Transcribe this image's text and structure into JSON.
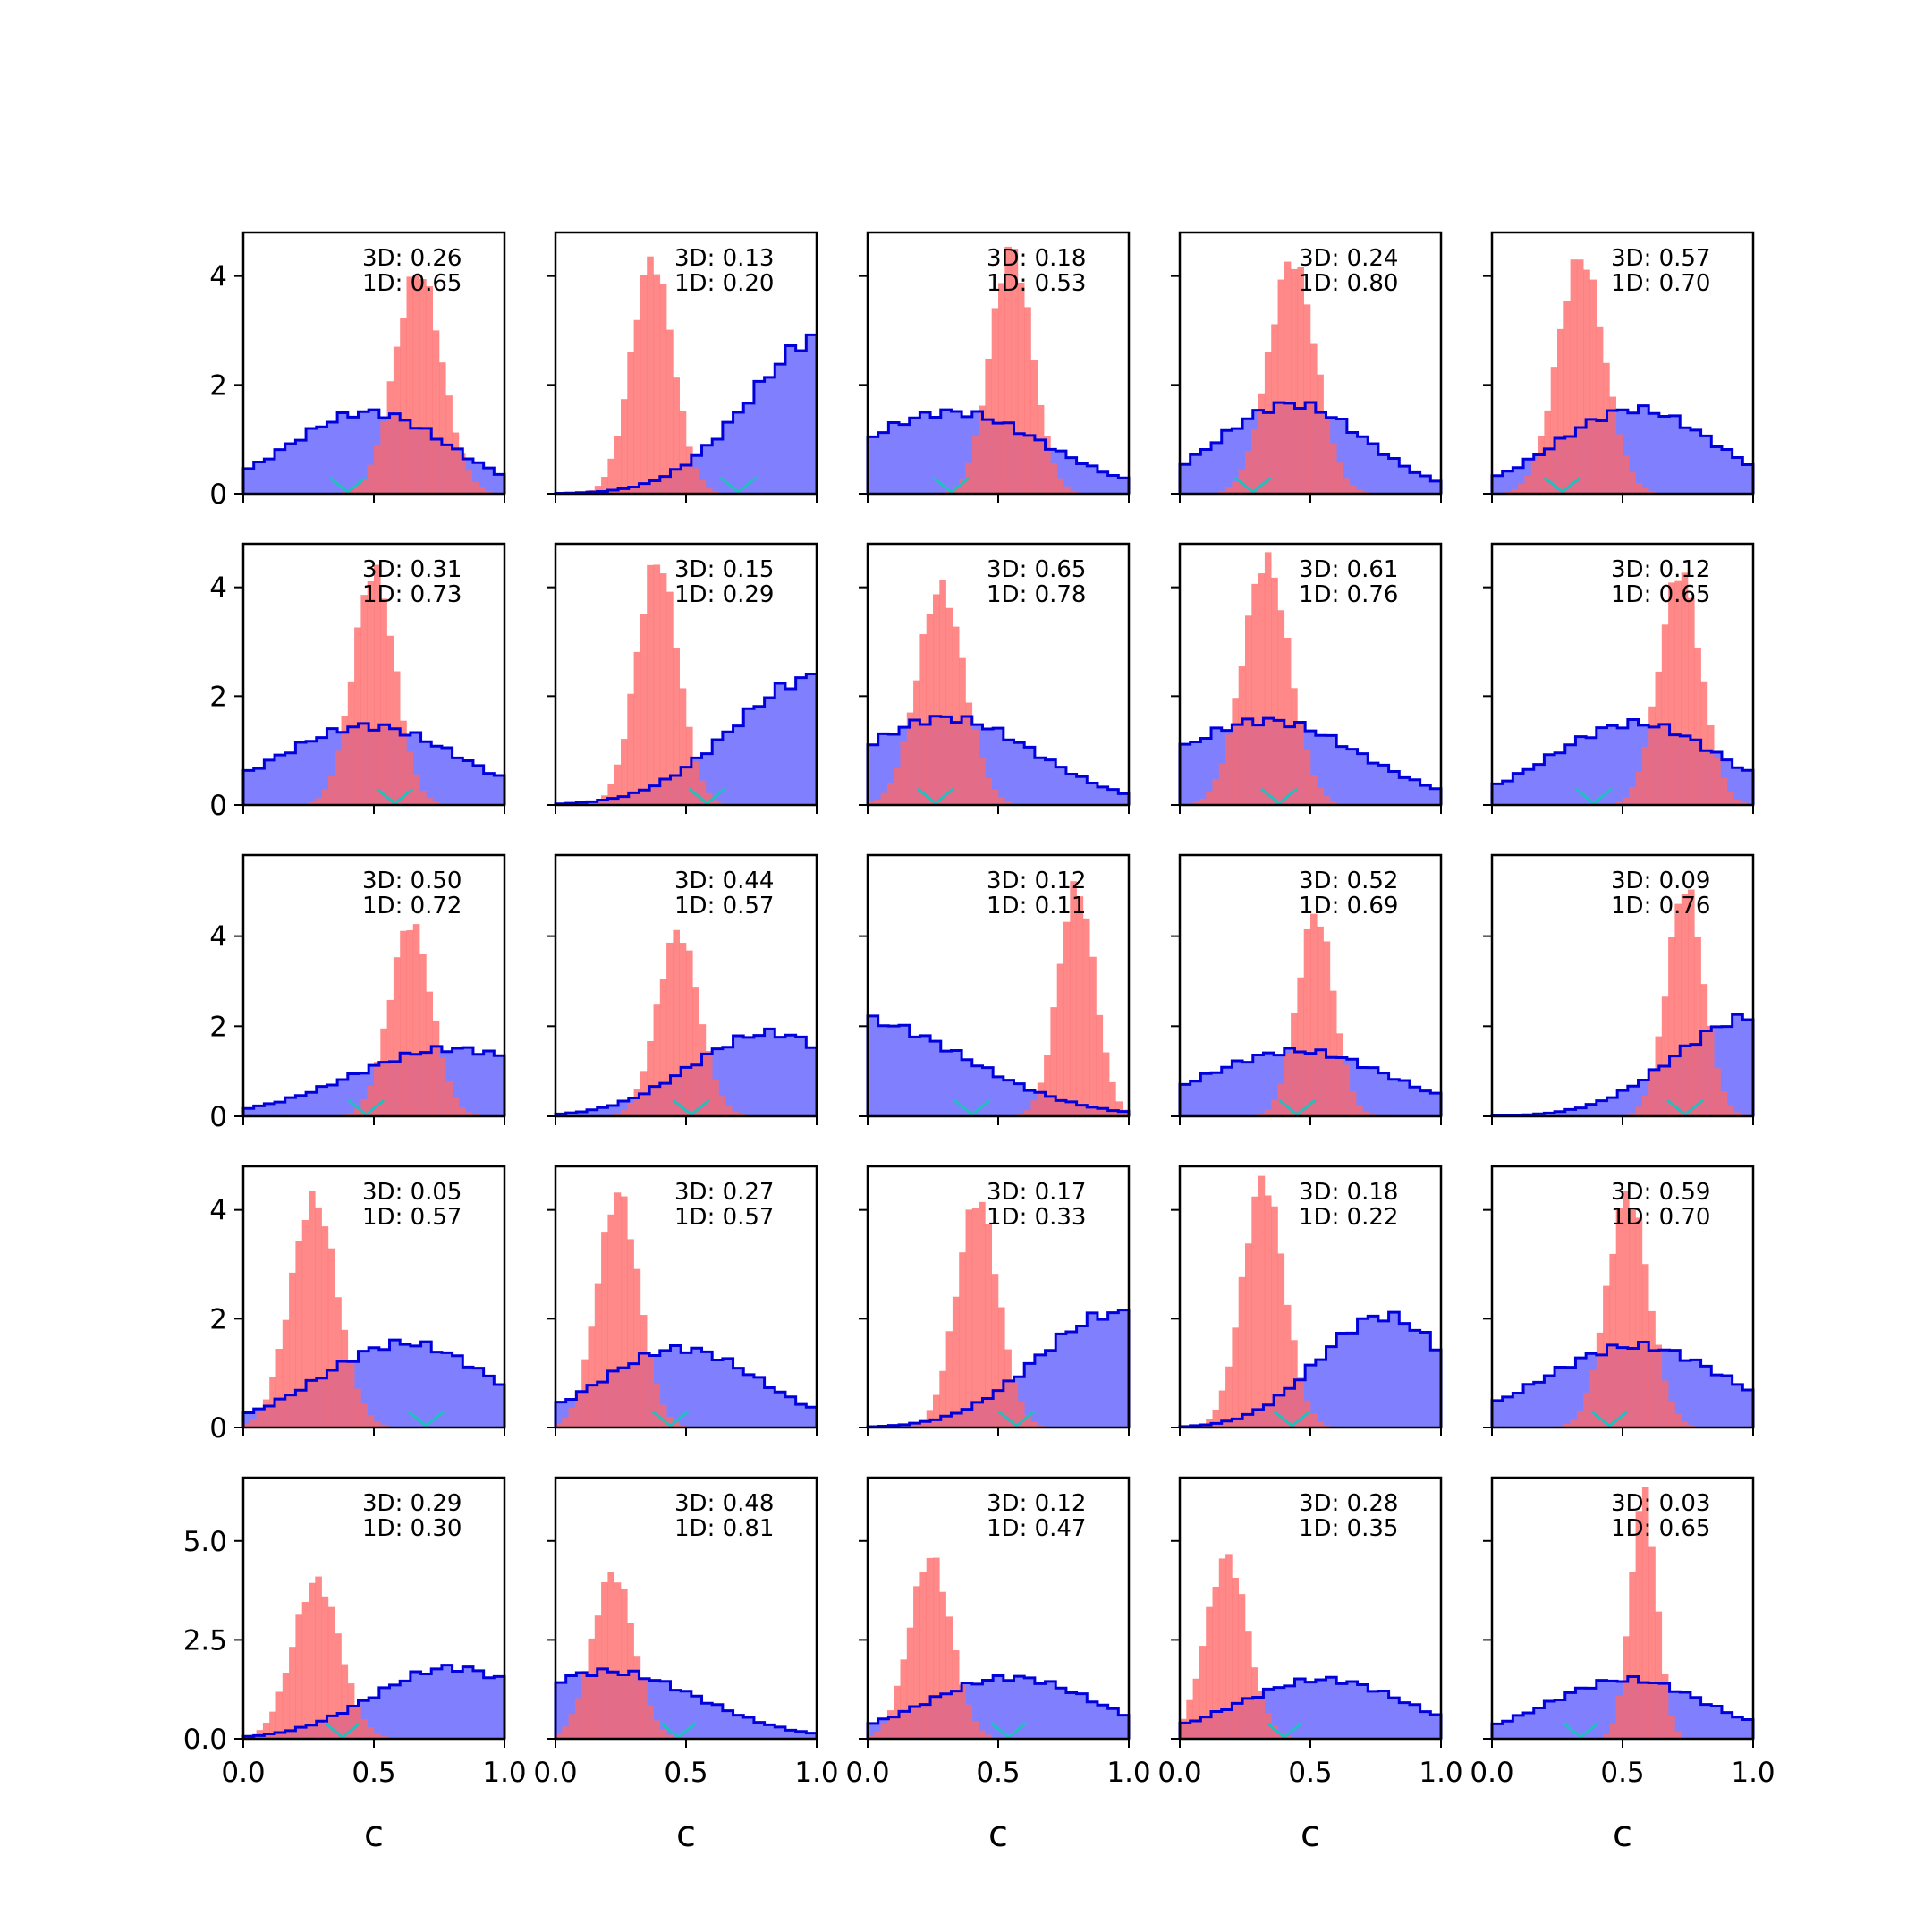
{
  "figure": {
    "xlabel": "c",
    "x_ticks": [
      "0.0",
      "0.5",
      "1.0"
    ],
    "row_y_ticks": [
      [
        "0",
        "2",
        "4"
      ],
      [
        "0",
        "2",
        "4"
      ],
      [
        "0",
        "2",
        "4"
      ],
      [
        "0",
        "2",
        "4"
      ],
      [
        "0.0",
        "2.5",
        "5.0"
      ]
    ],
    "colors": {
      "broad_fill": "#8080ff",
      "broad_edge": "#0000dd",
      "narrow_fill": "#ff6666",
      "overlap": "#b03070",
      "marker": "#20c0c0"
    }
  },
  "chart_data": [
    {
      "type": "bar",
      "row": 0,
      "col": 0,
      "xlim": [
        0,
        1
      ],
      "ylim": [
        0,
        4.8
      ],
      "annotation": [
        "3D: 0.26",
        "1D: 0.65"
      ],
      "broad": {
        "mean": 0.48,
        "sd": 0.3,
        "peak": 1.5
      },
      "narrow": {
        "mean": 0.67,
        "sd": 0.09,
        "peak": 4.1
      },
      "marker_x": 0.4
    },
    {
      "type": "bar",
      "row": 0,
      "col": 1,
      "xlim": [
        0,
        1
      ],
      "ylim": [
        0,
        4.8
      ],
      "annotation": [
        "3D: 0.13",
        "1D: 0.20"
      ],
      "broad": {
        "mean": 1.05,
        "sd": 0.3,
        "peak": 2.95
      },
      "narrow": {
        "mean": 0.37,
        "sd": 0.08,
        "peak": 4.3
      },
      "marker_x": 0.7
    },
    {
      "type": "bar",
      "row": 0,
      "col": 2,
      "xlim": [
        0,
        1
      ],
      "ylim": [
        0,
        4.8
      ],
      "annotation": [
        "3D: 0.18",
        "1D: 0.53"
      ],
      "broad": {
        "mean": 0.32,
        "sd": 0.36,
        "peak": 1.5
      },
      "narrow": {
        "mean": 0.55,
        "sd": 0.08,
        "peak": 4.5
      },
      "marker_x": 0.32
    },
    {
      "type": "bar",
      "row": 0,
      "col": 3,
      "xlim": [
        0,
        1
      ],
      "ylim": [
        0,
        4.8
      ],
      "annotation": [
        "3D: 0.24",
        "1D: 0.80"
      ],
      "broad": {
        "mean": 0.43,
        "sd": 0.28,
        "peak": 1.65
      },
      "narrow": {
        "mean": 0.43,
        "sd": 0.09,
        "peak": 4.3
      },
      "marker_x": 0.28
    },
    {
      "type": "bar",
      "row": 0,
      "col": 4,
      "xlim": [
        0,
        1
      ],
      "ylim": [
        0,
        4.8
      ],
      "annotation": [
        "3D: 0.57",
        "1D: 0.70"
      ],
      "broad": {
        "mean": 0.55,
        "sd": 0.3,
        "peak": 1.55
      },
      "narrow": {
        "mean": 0.34,
        "sd": 0.09,
        "peak": 4.35
      },
      "marker_x": 0.27
    },
    {
      "type": "bar",
      "row": 1,
      "col": 0,
      "xlim": [
        0,
        1
      ],
      "ylim": [
        0,
        4.8
      ],
      "annotation": [
        "3D: 0.31",
        "1D: 0.73"
      ],
      "broad": {
        "mean": 0.48,
        "sd": 0.35,
        "peak": 1.45
      },
      "narrow": {
        "mean": 0.5,
        "sd": 0.08,
        "peak": 4.3
      },
      "marker_x": 0.58
    },
    {
      "type": "bar",
      "row": 1,
      "col": 1,
      "xlim": [
        0,
        1
      ],
      "ylim": [
        0,
        4.8
      ],
      "annotation": [
        "3D: 0.15",
        "1D: 0.29"
      ],
      "broad": {
        "mean": 1.0,
        "sd": 0.32,
        "peak": 2.35
      },
      "narrow": {
        "mean": 0.39,
        "sd": 0.08,
        "peak": 4.5
      },
      "marker_x": 0.58
    },
    {
      "type": "bar",
      "row": 1,
      "col": 2,
      "xlim": [
        0,
        1
      ],
      "ylim": [
        0,
        4.8
      ],
      "annotation": [
        "3D: 0.65",
        "1D: 0.78"
      ],
      "broad": {
        "mean": 0.3,
        "sd": 0.34,
        "peak": 1.6
      },
      "narrow": {
        "mean": 0.28,
        "sd": 0.09,
        "peak": 4.0
      },
      "marker_x": 0.26
    },
    {
      "type": "bar",
      "row": 1,
      "col": 3,
      "xlim": [
        0,
        1
      ],
      "ylim": [
        0,
        4.8
      ],
      "annotation": [
        "3D: 0.61",
        "1D: 0.76"
      ],
      "broad": {
        "mean": 0.33,
        "sd": 0.36,
        "peak": 1.55
      },
      "narrow": {
        "mean": 0.33,
        "sd": 0.09,
        "peak": 4.5
      },
      "marker_x": 0.38
    },
    {
      "type": "bar",
      "row": 1,
      "col": 4,
      "xlim": [
        0,
        1
      ],
      "ylim": [
        0,
        4.8
      ],
      "annotation": [
        "3D: 0.12",
        "1D: 0.65"
      ],
      "broad": {
        "mean": 0.55,
        "sd": 0.32,
        "peak": 1.5
      },
      "narrow": {
        "mean": 0.72,
        "sd": 0.08,
        "peak": 4.3
      },
      "marker_x": 0.39
    },
    {
      "type": "bar",
      "row": 2,
      "col": 0,
      "xlim": [
        0,
        1
      ],
      "ylim": [
        0,
        5.8
      ],
      "annotation": [
        "3D: 0.50",
        "1D: 0.72"
      ],
      "broad": {
        "mean": 0.8,
        "sd": 0.38,
        "peak": 1.5
      },
      "narrow": {
        "mean": 0.64,
        "sd": 0.08,
        "peak": 4.3
      },
      "marker_x": 0.47
    },
    {
      "type": "bar",
      "row": 2,
      "col": 1,
      "xlim": [
        0,
        1
      ],
      "ylim": [
        0,
        5.8
      ],
      "annotation": [
        "3D: 0.44",
        "1D: 0.57"
      ],
      "broad": {
        "mean": 0.82,
        "sd": 0.3,
        "peak": 1.85
      },
      "narrow": {
        "mean": 0.47,
        "sd": 0.08,
        "peak": 4.1
      },
      "marker_x": 0.52
    },
    {
      "type": "bar",
      "row": 2,
      "col": 2,
      "xlim": [
        0,
        1
      ],
      "ylim": [
        0,
        5.8
      ],
      "annotation": [
        "3D: 0.12",
        "1D: 0.11"
      ],
      "broad": {
        "mean": -0.05,
        "sd": 0.42,
        "peak": 2.15
      },
      "narrow": {
        "mean": 0.8,
        "sd": 0.07,
        "peak": 5.1
      },
      "marker_x": 0.4
    },
    {
      "type": "bar",
      "row": 2,
      "col": 3,
      "xlim": [
        0,
        1
      ],
      "ylim": [
        0,
        5.8
      ],
      "annotation": [
        "3D: 0.52",
        "1D: 0.69"
      ],
      "broad": {
        "mean": 0.45,
        "sd": 0.36,
        "peak": 1.45
      },
      "narrow": {
        "mean": 0.52,
        "sd": 0.07,
        "peak": 4.5
      },
      "marker_x": 0.45
    },
    {
      "type": "bar",
      "row": 2,
      "col": 4,
      "xlim": [
        0,
        1
      ],
      "ylim": [
        0,
        5.8
      ],
      "annotation": [
        "3D: 0.09",
        "1D: 0.76"
      ],
      "broad": {
        "mean": 1.0,
        "sd": 0.3,
        "peak": 2.2
      },
      "narrow": {
        "mean": 0.74,
        "sd": 0.07,
        "peak": 5.1
      },
      "marker_x": 0.74
    },
    {
      "type": "bar",
      "row": 3,
      "col": 0,
      "xlim": [
        0,
        1
      ],
      "ylim": [
        0,
        4.8
      ],
      "annotation": [
        "3D: 0.05",
        "1D: 0.57"
      ],
      "broad": {
        "mean": 0.62,
        "sd": 0.32,
        "peak": 1.55
      },
      "narrow": {
        "mean": 0.27,
        "sd": 0.09,
        "peak": 4.2
      },
      "marker_x": 0.7
    },
    {
      "type": "bar",
      "row": 3,
      "col": 1,
      "xlim": [
        0,
        1
      ],
      "ylim": [
        0,
        4.8
      ],
      "annotation": [
        "3D: 0.27",
        "1D: 0.57"
      ],
      "broad": {
        "mean": 0.48,
        "sd": 0.3,
        "peak": 1.45
      },
      "narrow": {
        "mean": 0.24,
        "sd": 0.08,
        "peak": 4.3
      },
      "marker_x": 0.44
    },
    {
      "type": "bar",
      "row": 3,
      "col": 2,
      "xlim": [
        0,
        1
      ],
      "ylim": [
        0,
        4.8
      ],
      "annotation": [
        "3D: 0.17",
        "1D: 0.33"
      ],
      "broad": {
        "mean": 0.95,
        "sd": 0.3,
        "peak": 2.1
      },
      "narrow": {
        "mean": 0.42,
        "sd": 0.08,
        "peak": 4.2
      },
      "marker_x": 0.57
    },
    {
      "type": "bar",
      "row": 3,
      "col": 3,
      "xlim": [
        0,
        1
      ],
      "ylim": [
        0,
        4.8
      ],
      "annotation": [
        "3D: 0.18",
        "1D: 0.22"
      ],
      "broad": {
        "mean": 0.78,
        "sd": 0.25,
        "peak": 2.05
      },
      "narrow": {
        "mean": 0.32,
        "sd": 0.08,
        "peak": 4.55
      },
      "marker_x": 0.43
    },
    {
      "type": "bar",
      "row": 3,
      "col": 4,
      "xlim": [
        0,
        1
      ],
      "ylim": [
        0,
        4.8
      ],
      "annotation": [
        "3D: 0.59",
        "1D: 0.70"
      ],
      "broad": {
        "mean": 0.55,
        "sd": 0.35,
        "peak": 1.5
      },
      "narrow": {
        "mean": 0.52,
        "sd": 0.08,
        "peak": 4.3
      },
      "marker_x": 0.45
    },
    {
      "type": "bar",
      "row": 4,
      "col": 0,
      "xlim": [
        0,
        1
      ],
      "ylim": [
        0,
        6.6
      ],
      "annotation": [
        "3D: 0.29",
        "1D: 0.30"
      ],
      "broad": {
        "mean": 0.8,
        "sd": 0.3,
        "peak": 1.8
      },
      "narrow": {
        "mean": 0.28,
        "sd": 0.09,
        "peak": 4.0
      },
      "marker_x": 0.38
    },
    {
      "type": "bar",
      "row": 4,
      "col": 1,
      "xlim": [
        0,
        1
      ],
      "ylim": [
        0,
        6.6
      ],
      "annotation": [
        "3D: 0.48",
        "1D: 0.81"
      ],
      "broad": {
        "mean": 0.2,
        "sd": 0.35,
        "peak": 1.7
      },
      "narrow": {
        "mean": 0.22,
        "sd": 0.08,
        "peak": 4.2
      },
      "marker_x": 0.47
    },
    {
      "type": "bar",
      "row": 4,
      "col": 2,
      "xlim": [
        0,
        1
      ],
      "ylim": [
        0,
        6.6
      ],
      "annotation": [
        "3D: 0.12",
        "1D: 0.47"
      ],
      "broad": {
        "mean": 0.55,
        "sd": 0.32,
        "peak": 1.55
      },
      "narrow": {
        "mean": 0.24,
        "sd": 0.08,
        "peak": 4.6
      },
      "marker_x": 0.54
    },
    {
      "type": "bar",
      "row": 4,
      "col": 3,
      "xlim": [
        0,
        1
      ],
      "ylim": [
        0,
        6.6
      ],
      "annotation": [
        "3D: 0.28",
        "1D: 0.35"
      ],
      "broad": {
        "mean": 0.55,
        "sd": 0.32,
        "peak": 1.5
      },
      "narrow": {
        "mean": 0.18,
        "sd": 0.08,
        "peak": 4.6
      },
      "marker_x": 0.4
    },
    {
      "type": "bar",
      "row": 4,
      "col": 4,
      "xlim": [
        0,
        1
      ],
      "ylim": [
        0,
        6.6
      ],
      "annotation": [
        "3D: 0.03",
        "1D: 0.65"
      ],
      "broad": {
        "mean": 0.52,
        "sd": 0.3,
        "peak": 1.5
      },
      "narrow": {
        "mean": 0.58,
        "sd": 0.05,
        "peak": 6.2
      },
      "marker_x": 0.34
    }
  ]
}
